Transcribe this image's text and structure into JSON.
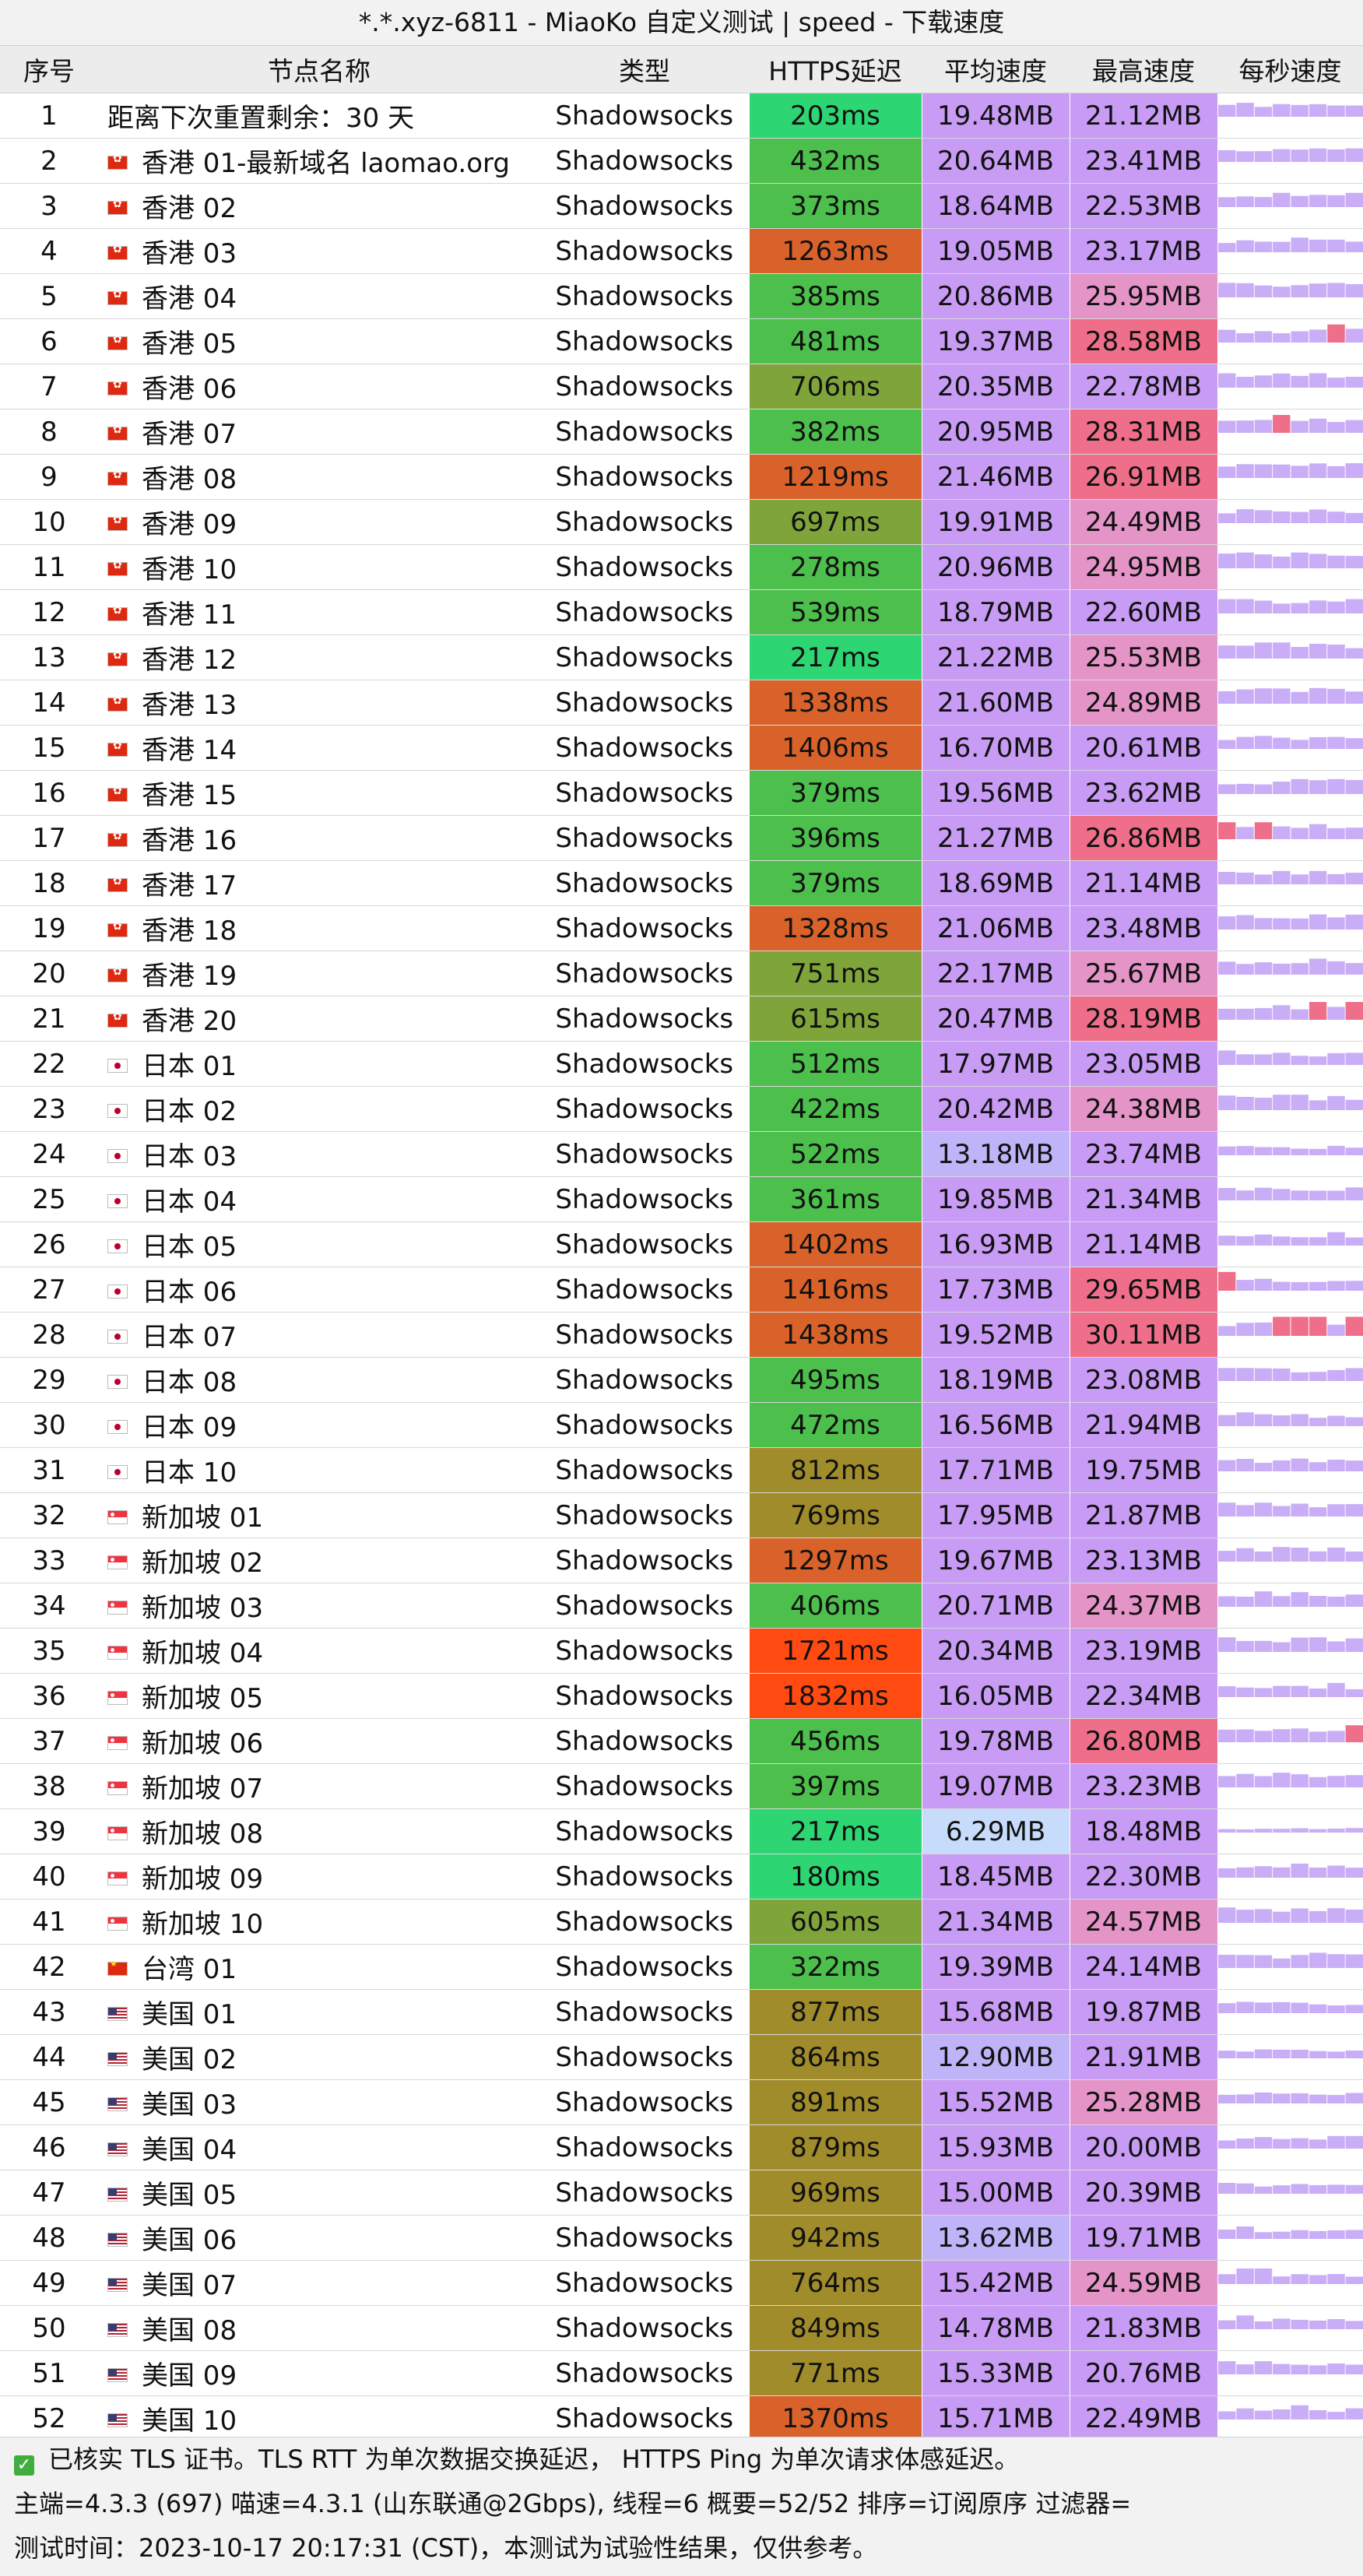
{
  "title": "*.*.xyz-6811 - MiaoKo 自定义测试 | speed - 下载速度",
  "columns": [
    "序号",
    "节点名称",
    "类型",
    "HTTPS延迟",
    "平均速度",
    "最高速度",
    "每秒速度"
  ],
  "colors": {
    "avg_base": "#c89bf5",
    "max_base": "#c89bf5",
    "max_high": "#ef6f8a",
    "spark_low": "#c9aef7",
    "spark_high": "#ef6f8a",
    "latency_scale": [
      "#2ed573",
      "#4cbf4c",
      "#7fa53a",
      "#a08c2a",
      "#d9622a",
      "#ff4b12"
    ]
  },
  "rows": [
    {
      "idx": "1",
      "name": "距离下次重置剩余：30 天",
      "flag": "",
      "type": "Shadowsocks",
      "latency": "203ms",
      "avg": "19.48MB",
      "max": "21.12MB"
    },
    {
      "idx": "2",
      "name": "香港 01-最新域名 laomao.org",
      "flag": "hk",
      "type": "Shadowsocks",
      "latency": "432ms",
      "avg": "20.64MB",
      "max": "23.41MB"
    },
    {
      "idx": "3",
      "name": "香港 02",
      "flag": "hk",
      "type": "Shadowsocks",
      "latency": "373ms",
      "avg": "18.64MB",
      "max": "22.53MB"
    },
    {
      "idx": "4",
      "name": "香港 03",
      "flag": "hk",
      "type": "Shadowsocks",
      "latency": "1263ms",
      "avg": "19.05MB",
      "max": "23.17MB"
    },
    {
      "idx": "5",
      "name": "香港 04",
      "flag": "hk",
      "type": "Shadowsocks",
      "latency": "385ms",
      "avg": "20.86MB",
      "max": "25.95MB"
    },
    {
      "idx": "6",
      "name": "香港 05",
      "flag": "hk",
      "type": "Shadowsocks",
      "latency": "481ms",
      "avg": "19.37MB",
      "max": "28.58MB"
    },
    {
      "idx": "7",
      "name": "香港 06",
      "flag": "hk",
      "type": "Shadowsocks",
      "latency": "706ms",
      "avg": "20.35MB",
      "max": "22.78MB"
    },
    {
      "idx": "8",
      "name": "香港 07",
      "flag": "hk",
      "type": "Shadowsocks",
      "latency": "382ms",
      "avg": "20.95MB",
      "max": "28.31MB"
    },
    {
      "idx": "9",
      "name": "香港 08",
      "flag": "hk",
      "type": "Shadowsocks",
      "latency": "1219ms",
      "avg": "21.46MB",
      "max": "26.91MB"
    },
    {
      "idx": "10",
      "name": "香港 09",
      "flag": "hk",
      "type": "Shadowsocks",
      "latency": "697ms",
      "avg": "19.91MB",
      "max": "24.49MB"
    },
    {
      "idx": "11",
      "name": "香港 10",
      "flag": "hk",
      "type": "Shadowsocks",
      "latency": "278ms",
      "avg": "20.96MB",
      "max": "24.95MB"
    },
    {
      "idx": "12",
      "name": "香港 11",
      "flag": "hk",
      "type": "Shadowsocks",
      "latency": "539ms",
      "avg": "18.79MB",
      "max": "22.60MB"
    },
    {
      "idx": "13",
      "name": "香港 12",
      "flag": "hk",
      "type": "Shadowsocks",
      "latency": "217ms",
      "avg": "21.22MB",
      "max": "25.53MB"
    },
    {
      "idx": "14",
      "name": "香港 13",
      "flag": "hk",
      "type": "Shadowsocks",
      "latency": "1338ms",
      "avg": "21.60MB",
      "max": "24.89MB"
    },
    {
      "idx": "15",
      "name": "香港 14",
      "flag": "hk",
      "type": "Shadowsocks",
      "latency": "1406ms",
      "avg": "16.70MB",
      "max": "20.61MB"
    },
    {
      "idx": "16",
      "name": "香港 15",
      "flag": "hk",
      "type": "Shadowsocks",
      "latency": "379ms",
      "avg": "19.56MB",
      "max": "23.62MB"
    },
    {
      "idx": "17",
      "name": "香港 16",
      "flag": "hk",
      "type": "Shadowsocks",
      "latency": "396ms",
      "avg": "21.27MB",
      "max": "26.86MB"
    },
    {
      "idx": "18",
      "name": "香港 17",
      "flag": "hk",
      "type": "Shadowsocks",
      "latency": "379ms",
      "avg": "18.69MB",
      "max": "21.14MB"
    },
    {
      "idx": "19",
      "name": "香港 18",
      "flag": "hk",
      "type": "Shadowsocks",
      "latency": "1328ms",
      "avg": "21.06MB",
      "max": "23.48MB"
    },
    {
      "idx": "20",
      "name": "香港 19",
      "flag": "hk",
      "type": "Shadowsocks",
      "latency": "751ms",
      "avg": "22.17MB",
      "max": "25.67MB"
    },
    {
      "idx": "21",
      "name": "香港 20",
      "flag": "hk",
      "type": "Shadowsocks",
      "latency": "615ms",
      "avg": "20.47MB",
      "max": "28.19MB"
    },
    {
      "idx": "22",
      "name": "日本 01",
      "flag": "jp",
      "type": "Shadowsocks",
      "latency": "512ms",
      "avg": "17.97MB",
      "max": "23.05MB"
    },
    {
      "idx": "23",
      "name": "日本 02",
      "flag": "jp",
      "type": "Shadowsocks",
      "latency": "422ms",
      "avg": "20.42MB",
      "max": "24.38MB"
    },
    {
      "idx": "24",
      "name": "日本 03",
      "flag": "jp",
      "type": "Shadowsocks",
      "latency": "522ms",
      "avg": "13.18MB",
      "max": "23.74MB"
    },
    {
      "idx": "25",
      "name": "日本 04",
      "flag": "jp",
      "type": "Shadowsocks",
      "latency": "361ms",
      "avg": "19.85MB",
      "max": "21.34MB"
    },
    {
      "idx": "26",
      "name": "日本 05",
      "flag": "jp",
      "type": "Shadowsocks",
      "latency": "1402ms",
      "avg": "16.93MB",
      "max": "21.14MB"
    },
    {
      "idx": "27",
      "name": "日本 06",
      "flag": "jp",
      "type": "Shadowsocks",
      "latency": "1416ms",
      "avg": "17.73MB",
      "max": "29.65MB"
    },
    {
      "idx": "28",
      "name": "日本 07",
      "flag": "jp",
      "type": "Shadowsocks",
      "latency": "1438ms",
      "avg": "19.52MB",
      "max": "30.11MB"
    },
    {
      "idx": "29",
      "name": "日本 08",
      "flag": "jp",
      "type": "Shadowsocks",
      "latency": "495ms",
      "avg": "18.19MB",
      "max": "23.08MB"
    },
    {
      "idx": "30",
      "name": "日本 09",
      "flag": "jp",
      "type": "Shadowsocks",
      "latency": "472ms",
      "avg": "16.56MB",
      "max": "21.94MB"
    },
    {
      "idx": "31",
      "name": "日本 10",
      "flag": "jp",
      "type": "Shadowsocks",
      "latency": "812ms",
      "avg": "17.71MB",
      "max": "19.75MB"
    },
    {
      "idx": "32",
      "name": "新加坡 01",
      "flag": "sg",
      "type": "Shadowsocks",
      "latency": "769ms",
      "avg": "17.95MB",
      "max": "21.87MB"
    },
    {
      "idx": "33",
      "name": "新加坡 02",
      "flag": "sg",
      "type": "Shadowsocks",
      "latency": "1297ms",
      "avg": "19.67MB",
      "max": "23.13MB"
    },
    {
      "idx": "34",
      "name": "新加坡 03",
      "flag": "sg",
      "type": "Shadowsocks",
      "latency": "406ms",
      "avg": "20.71MB",
      "max": "24.37MB"
    },
    {
      "idx": "35",
      "name": "新加坡 04",
      "flag": "sg",
      "type": "Shadowsocks",
      "latency": "1721ms",
      "avg": "20.34MB",
      "max": "23.19MB"
    },
    {
      "idx": "36",
      "name": "新加坡 05",
      "flag": "sg",
      "type": "Shadowsocks",
      "latency": "1832ms",
      "avg": "16.05MB",
      "max": "22.34MB"
    },
    {
      "idx": "37",
      "name": "新加坡 06",
      "flag": "sg",
      "type": "Shadowsocks",
      "latency": "456ms",
      "avg": "19.78MB",
      "max": "26.80MB"
    },
    {
      "idx": "38",
      "name": "新加坡 07",
      "flag": "sg",
      "type": "Shadowsocks",
      "latency": "397ms",
      "avg": "19.07MB",
      "max": "23.23MB"
    },
    {
      "idx": "39",
      "name": "新加坡 08",
      "flag": "sg",
      "type": "Shadowsocks",
      "latency": "217ms",
      "avg": "6.29MB",
      "max": "18.48MB"
    },
    {
      "idx": "40",
      "name": "新加坡 09",
      "flag": "sg",
      "type": "Shadowsocks",
      "latency": "180ms",
      "avg": "18.45MB",
      "max": "22.30MB"
    },
    {
      "idx": "41",
      "name": "新加坡 10",
      "flag": "sg",
      "type": "Shadowsocks",
      "latency": "605ms",
      "avg": "21.34MB",
      "max": "24.57MB"
    },
    {
      "idx": "42",
      "name": "台湾 01",
      "flag": "cn",
      "type": "Shadowsocks",
      "latency": "322ms",
      "avg": "19.39MB",
      "max": "24.14MB"
    },
    {
      "idx": "43",
      "name": "美国 01",
      "flag": "us",
      "type": "Shadowsocks",
      "latency": "877ms",
      "avg": "15.68MB",
      "max": "19.87MB"
    },
    {
      "idx": "44",
      "name": "美国 02",
      "flag": "us",
      "type": "Shadowsocks",
      "latency": "864ms",
      "avg": "12.90MB",
      "max": "21.91MB"
    },
    {
      "idx": "45",
      "name": "美国 03",
      "flag": "us",
      "type": "Shadowsocks",
      "latency": "891ms",
      "avg": "15.52MB",
      "max": "25.28MB"
    },
    {
      "idx": "46",
      "name": "美国 04",
      "flag": "us",
      "type": "Shadowsocks",
      "latency": "879ms",
      "avg": "15.93MB",
      "max": "20.00MB"
    },
    {
      "idx": "47",
      "name": "美国 05",
      "flag": "us",
      "type": "Shadowsocks",
      "latency": "969ms",
      "avg": "15.00MB",
      "max": "20.39MB"
    },
    {
      "idx": "48",
      "name": "美国 06",
      "flag": "us",
      "type": "Shadowsocks",
      "latency": "942ms",
      "avg": "13.62MB",
      "max": "19.71MB"
    },
    {
      "idx": "49",
      "name": "美国 07",
      "flag": "us",
      "type": "Shadowsocks",
      "latency": "764ms",
      "avg": "15.42MB",
      "max": "24.59MB"
    },
    {
      "idx": "50",
      "name": "美国 08",
      "flag": "us",
      "type": "Shadowsocks",
      "latency": "849ms",
      "avg": "14.78MB",
      "max": "21.83MB"
    },
    {
      "idx": "51",
      "name": "美国 09",
      "flag": "us",
      "type": "Shadowsocks",
      "latency": "771ms",
      "avg": "15.33MB",
      "max": "20.76MB"
    },
    {
      "idx": "52",
      "name": "美国 10",
      "flag": "us",
      "type": "Shadowsocks",
      "latency": "1370ms",
      "avg": "15.71MB",
      "max": "22.49MB"
    }
  ],
  "footer": {
    "line1": "已核实 TLS 证书。TLS RTT 为单次数据交换延迟， HTTPS Ping 为单次请求体感延迟。",
    "line2": "主端=4.3.3 (697) 喵速=4.3.1 (山东联通@2Gbps), 线程=6 概要=52/52 排序=订阅原序 过滤器=",
    "line3": "测试时间：2023-10-17 20:17:31 (CST)，本测试为试验性结果，仅供参考。"
  }
}
